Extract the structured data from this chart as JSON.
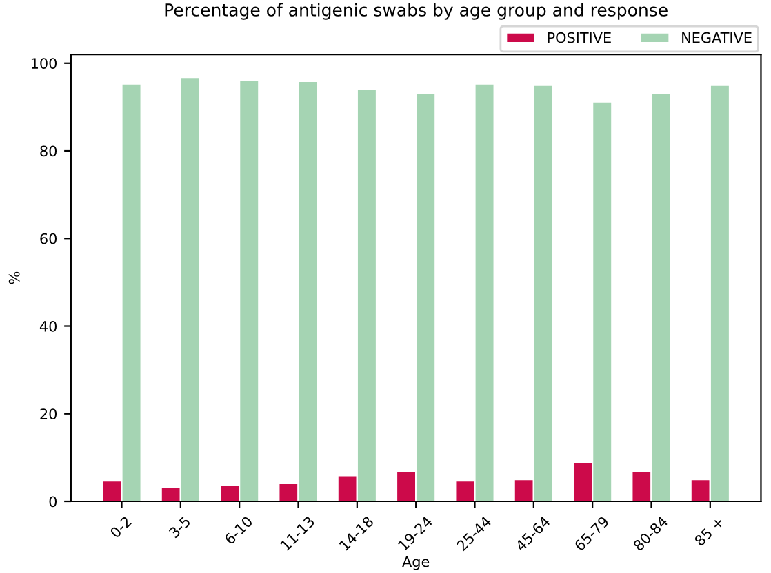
{
  "chart_data": {
    "type": "bar",
    "title": "Percentage of antigenic swabs by age group and response",
    "xlabel": "Age",
    "ylabel": "%",
    "categories": [
      "0-2",
      "3-5",
      "6-10",
      "11-13",
      "14-18",
      "19-24",
      "25-44",
      "45-64",
      "65-79",
      "80-84",
      "85 +"
    ],
    "series": [
      {
        "name": "POSITIVE",
        "color": "#cc0a4a",
        "values": [
          4.7,
          3.2,
          3.8,
          4.1,
          5.9,
          6.8,
          4.7,
          5.0,
          8.8,
          6.9,
          5.0
        ]
      },
      {
        "name": "NEGATIVE",
        "color": "#a5d4b3",
        "values": [
          95.3,
          96.8,
          96.2,
          95.9,
          94.1,
          93.2,
          95.3,
          95.0,
          91.2,
          93.1,
          95.0
        ]
      }
    ],
    "ylim": [
      0,
      102
    ],
    "yticks": [
      0,
      20,
      40,
      60,
      80,
      100
    ],
    "legend": "top right",
    "grid": false
  }
}
